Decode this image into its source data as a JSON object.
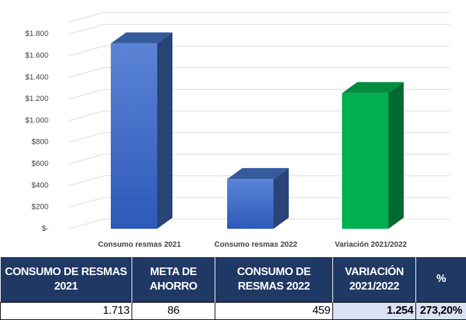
{
  "chart_data": {
    "type": "bar3d",
    "categories": [
      "Consumo resmas 2021",
      "Consumo resmas 2022",
      "Variación 2021/2022"
    ],
    "values": [
      1713,
      459,
      1254
    ],
    "colors": [
      "#4472c4",
      "#4472c4",
      "#00b050"
    ],
    "ylim": [
      0,
      2000
    ],
    "yticks": [
      {
        "value": 0,
        "label": "$-"
      },
      {
        "value": 200,
        "label": "$200"
      },
      {
        "value": 400,
        "label": "$400"
      },
      {
        "value": 600,
        "label": "$600"
      },
      {
        "value": 800,
        "label": "$800"
      },
      {
        "value": 1000,
        "label": "$1.000"
      },
      {
        "value": 1200,
        "label": "$1.200"
      },
      {
        "value": 1400,
        "label": "$1.400"
      },
      {
        "value": 1600,
        "label": "$1.600"
      },
      {
        "value": 1800,
        "label": "$1.800"
      }
    ],
    "grid": true
  },
  "table": {
    "header": [
      "CONSUMO DE RESMAS 2021",
      "META DE AHORRO",
      "CONSUMO DE RESMAS 2022",
      "VARIACIÓN 2021/2022",
      "%"
    ],
    "rows": [
      [
        "1.713",
        "86",
        "459",
        "1.254",
        "273,20%"
      ]
    ]
  }
}
